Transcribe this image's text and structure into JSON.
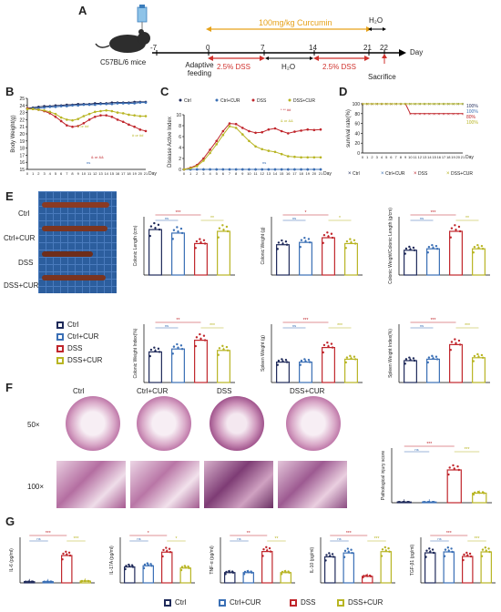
{
  "panels": {
    "A": {
      "letter": "A",
      "mouse_label": "C57BL/6 mice",
      "timeline_days": [
        "-7",
        "0",
        "7",
        "14",
        "21",
        "22",
        "Day"
      ],
      "curcumin_label": "100mg/kg Curcumin",
      "h2o_top": "H₂O",
      "adaptive": "Adaptive feeding",
      "dss1": "2.5% DSS",
      "h2o_mid": "H₂O",
      "dss2": "2.5% DSS",
      "sacrifice": "Sacrifice"
    },
    "B": {
      "letter": "B"
    },
    "C": {
      "letter": "C"
    },
    "D": {
      "letter": "D"
    },
    "E": {
      "letter": "E",
      "photo_labels": [
        "Ctrl",
        "Ctrl+CUR",
        "DSS",
        "DSS+CUR"
      ],
      "legend": [
        "Ctrl",
        "Ctrl+CUR",
        "DSS",
        "DSS+CUR"
      ]
    },
    "F": {
      "letter": "F",
      "col_labels": [
        "Ctrl",
        "Ctrl+CUR",
        "DSS",
        "DSS+CUR"
      ],
      "row_labels": [
        "50×",
        "100×"
      ]
    },
    "G": {
      "letter": "G",
      "legend": [
        "Ctrl",
        "Ctrl+CUR",
        "DSS",
        "DSS+CUR"
      ]
    }
  },
  "colors": {
    "Ctrl": "#1f2a5a",
    "Ctrl+CUR": "#3a6fb5",
    "DSS": "#c0262c",
    "DSS+CUR": "#b8b523",
    "curcumin_arrow": "#e6a21a",
    "dss_arrow": "#d0312d"
  },
  "chart_data": [
    {
      "id": "B",
      "type": "line",
      "ylabel": "Body Weight(g)",
      "xlabel": "Day",
      "x": [
        0,
        1,
        2,
        3,
        4,
        5,
        6,
        7,
        8,
        9,
        10,
        11,
        12,
        13,
        14,
        15,
        16,
        17,
        18,
        19,
        20,
        21
      ],
      "ylim": [
        15,
        25
      ],
      "yticks": [
        15,
        16,
        17,
        18,
        19,
        20,
        21,
        22,
        23,
        24,
        25
      ],
      "series": [
        {
          "name": "Ctrl",
          "values": [
            23.6,
            23.7,
            23.8,
            23.9,
            23.9,
            24.0,
            24.0,
            24.1,
            24.1,
            24.2,
            24.2,
            24.2,
            24.3,
            24.3,
            24.3,
            24.4,
            24.4,
            24.4,
            24.4,
            24.5,
            24.5,
            24.5
          ]
        },
        {
          "name": "Ctrl+CUR",
          "values": [
            23.5,
            23.6,
            23.6,
            23.7,
            23.8,
            23.8,
            23.9,
            23.9,
            24.0,
            24.0,
            24.1,
            24.1,
            24.1,
            24.2,
            24.2,
            24.2,
            24.3,
            24.3,
            24.3,
            24.3,
            24.4,
            24.4
          ]
        },
        {
          "name": "DSS",
          "values": [
            23.6,
            23.5,
            23.4,
            23.2,
            22.9,
            22.4,
            21.8,
            21.2,
            21.0,
            21.1,
            21.5,
            22.0,
            22.4,
            22.6,
            22.6,
            22.4,
            22.0,
            21.7,
            21.3,
            21.0,
            20.6,
            20.4
          ]
        },
        {
          "name": "DSS+CUR",
          "values": [
            23.5,
            23.5,
            23.4,
            23.3,
            23.1,
            22.8,
            22.3,
            22.0,
            21.9,
            22.1,
            22.5,
            22.8,
            23.1,
            23.2,
            23.3,
            23.2,
            23.0,
            22.9,
            22.7,
            22.6,
            22.5,
            22.5
          ]
        }
      ],
      "annotations": [
        "ns",
        "# or ##",
        "# or ##",
        "& or &&"
      ]
    },
    {
      "id": "C",
      "type": "line",
      "ylabel": "Disease Active Index",
      "xlabel": "Day",
      "x": [
        0,
        1,
        2,
        3,
        4,
        5,
        6,
        7,
        8,
        9,
        10,
        11,
        12,
        13,
        14,
        15,
        16,
        17,
        18,
        19,
        20,
        21
      ],
      "ylim": [
        0,
        10
      ],
      "yticks": [
        0,
        2,
        4,
        6,
        8,
        10
      ],
      "legend": [
        "Ctrl",
        "Ctrl+CUR",
        "DSS",
        "DSS+CUR"
      ],
      "series": [
        {
          "name": "Ctrl",
          "values": [
            0,
            0,
            0,
            0,
            0,
            0,
            0,
            0,
            0,
            0,
            0,
            0,
            0,
            0,
            0,
            0,
            0,
            0,
            0,
            0,
            0,
            0
          ]
        },
        {
          "name": "Ctrl+CUR",
          "values": [
            0,
            0,
            0,
            0,
            0,
            0,
            0,
            0,
            0,
            0,
            0,
            0,
            0,
            0,
            0,
            0,
            0,
            0,
            0,
            0,
            0,
            0
          ]
        },
        {
          "name": "DSS",
          "values": [
            0,
            0.3,
            0.8,
            2.0,
            3.6,
            5.2,
            7.0,
            8.4,
            8.3,
            7.6,
            7.0,
            6.7,
            6.8,
            7.3,
            7.5,
            7.0,
            6.6,
            6.9,
            7.1,
            7.3,
            7.2,
            7.3
          ]
        },
        {
          "name": "DSS+CUR",
          "values": [
            0,
            0.2,
            0.6,
            1.6,
            3.0,
            4.6,
            6.3,
            7.9,
            7.6,
            6.4,
            5.2,
            4.2,
            3.7,
            3.4,
            3.2,
            2.8,
            2.4,
            2.3,
            2.2,
            2.2,
            2.2,
            2.2
          ]
        }
      ],
      "annotations": [
        "ns",
        "* ** ##",
        "& or &&"
      ]
    },
    {
      "id": "D",
      "type": "line",
      "ylabel": "survival rate(%)",
      "xlabel": "Day",
      "x": [
        0,
        1,
        2,
        3,
        4,
        5,
        6,
        7,
        8,
        9,
        10,
        11,
        12,
        13,
        14,
        15,
        16,
        17,
        18,
        19,
        20,
        21
      ],
      "ylim": [
        0,
        100
      ],
      "yticks": [
        0,
        20,
        40,
        60,
        80,
        100
      ],
      "series": [
        {
          "name": "Ctrl",
          "values": [
            100,
            100,
            100,
            100,
            100,
            100,
            100,
            100,
            100,
            100,
            100,
            100,
            100,
            100,
            100,
            100,
            100,
            100,
            100,
            100,
            100,
            100
          ],
          "end_label": "100%"
        },
        {
          "name": "Ctrl+CUR",
          "values": [
            100,
            100,
            100,
            100,
            100,
            100,
            100,
            100,
            100,
            100,
            100,
            100,
            100,
            100,
            100,
            100,
            100,
            100,
            100,
            100,
            100,
            100
          ],
          "end_label": "100%"
        },
        {
          "name": "DSS",
          "values": [
            100,
            100,
            100,
            100,
            100,
            100,
            100,
            100,
            100,
            100,
            80,
            80,
            80,
            80,
            80,
            80,
            80,
            80,
            80,
            80,
            80,
            80
          ],
          "end_label": "80%"
        },
        {
          "name": "DSS+CUR",
          "values": [
            100,
            100,
            100,
            100,
            100,
            100,
            100,
            100,
            100,
            100,
            100,
            100,
            100,
            100,
            100,
            100,
            100,
            100,
            100,
            100,
            100,
            100
          ],
          "end_label": "100%"
        }
      ]
    },
    {
      "id": "E1",
      "type": "bar",
      "ylabel": "Colonic Length (cm)",
      "categories": [
        "Ctrl",
        "Ctrl+CUR",
        "DSS",
        "DSS+CUR"
      ],
      "values": [
        7.8,
        7.2,
        5.4,
        7.5
      ],
      "ylim": [
        0,
        10
      ],
      "sig": [
        "***",
        "ns",
        "**"
      ]
    },
    {
      "id": "E2",
      "type": "bar",
      "ylabel": "Colonic Weight (g)",
      "categories": [
        "Ctrl",
        "Ctrl+CUR",
        "DSS",
        "DSS+CUR"
      ],
      "values": [
        0.26,
        0.28,
        0.32,
        0.27
      ],
      "ylim": [
        0,
        0.5
      ],
      "sig": [
        "*",
        "ns",
        "*"
      ]
    },
    {
      "id": "E3",
      "type": "bar",
      "ylabel": "Colonic Weight/Colonic Length (g/cm)",
      "categories": [
        "Ctrl",
        "Ctrl+CUR",
        "DSS",
        "DSS+CUR"
      ],
      "values": [
        0.034,
        0.036,
        0.06,
        0.036
      ],
      "ylim": [
        0,
        0.08
      ],
      "sig": [
        "***",
        "ns",
        "**"
      ]
    },
    {
      "id": "E4",
      "type": "bar",
      "ylabel": "Colonic Weight Index(%)",
      "categories": [
        "Ctrl",
        "Ctrl+CUR",
        "DSS",
        "DSS+CUR"
      ],
      "values": [
        1.05,
        1.15,
        1.45,
        1.1
      ],
      "ylim": [
        0,
        2
      ],
      "sig": [
        "**",
        "ns",
        "***"
      ]
    },
    {
      "id": "E5",
      "type": "bar",
      "ylabel": "Spleen Weight (g)",
      "categories": [
        "Ctrl",
        "Ctrl+CUR",
        "DSS",
        "DSS+CUR"
      ],
      "values": [
        0.07,
        0.07,
        0.12,
        0.08
      ],
      "ylim": [
        0,
        0.2
      ],
      "sig": [
        "***",
        "ns",
        "***"
      ]
    },
    {
      "id": "E6",
      "type": "bar",
      "ylabel": "Spleen Weight Index(%)",
      "categories": [
        "Ctrl",
        "Ctrl+CUR",
        "DSS",
        "DSS+CUR"
      ],
      "values": [
        0.3,
        0.32,
        0.52,
        0.34
      ],
      "ylim": [
        0,
        0.8
      ],
      "sig": [
        "***",
        "ns",
        "***"
      ]
    },
    {
      "id": "F1",
      "type": "bar",
      "ylabel": "Pathological injury score",
      "categories": [
        "Ctrl",
        "Ctrl+CUR",
        "DSS",
        "DSS+CUR"
      ],
      "values": [
        0.1,
        0.1,
        4.8,
        1.4
      ],
      "ylim": [
        0,
        8
      ],
      "sig": [
        "***",
        "ns",
        "***"
      ]
    },
    {
      "id": "G1",
      "type": "bar",
      "ylabel": "IL-6 (pg/ml)",
      "categories": [
        "Ctrl",
        "Ctrl+CUR",
        "DSS",
        "DSS+CUR"
      ],
      "values": [
        2,
        2,
        48,
        3
      ],
      "ylim": [
        0,
        80
      ],
      "sig": [
        "***",
        "ns",
        "***"
      ]
    },
    {
      "id": "G2",
      "type": "bar",
      "ylabel": "IL-17A (pg/ml)",
      "categories": [
        "Ctrl",
        "Ctrl+CUR",
        "DSS",
        "DSS+CUR"
      ],
      "values": [
        14,
        15,
        27,
        13
      ],
      "ylim": [
        0,
        40
      ],
      "sig": [
        "*",
        "ns",
        "*"
      ]
    },
    {
      "id": "G3",
      "type": "bar",
      "ylabel": "TNF-α (pg/ml)",
      "categories": [
        "Ctrl",
        "Ctrl+CUR",
        "DSS",
        "DSS+CUR"
      ],
      "values": [
        18,
        18,
        55,
        18
      ],
      "ylim": [
        0,
        80
      ],
      "sig": [
        "**",
        "ns",
        "**"
      ]
    },
    {
      "id": "G4",
      "type": "bar",
      "ylabel": "IL-10 (pg/ml)",
      "categories": [
        "Ctrl",
        "Ctrl+CUR",
        "DSS",
        "DSS+CUR"
      ],
      "values": [
        40,
        46,
        10,
        48
      ],
      "ylim": [
        0,
        70
      ],
      "sig": [
        "***",
        "ns",
        "***"
      ]
    },
    {
      "id": "G5",
      "type": "bar",
      "ylabel": "TGF-β1 (pg/ml)",
      "categories": [
        "Ctrl",
        "Ctrl+CUR",
        "DSS",
        "DSS+CUR"
      ],
      "values": [
        330,
        340,
        290,
        340
      ],
      "ylim": [
        0,
        500
      ],
      "sig": [
        "***",
        "ns",
        "***"
      ]
    }
  ]
}
